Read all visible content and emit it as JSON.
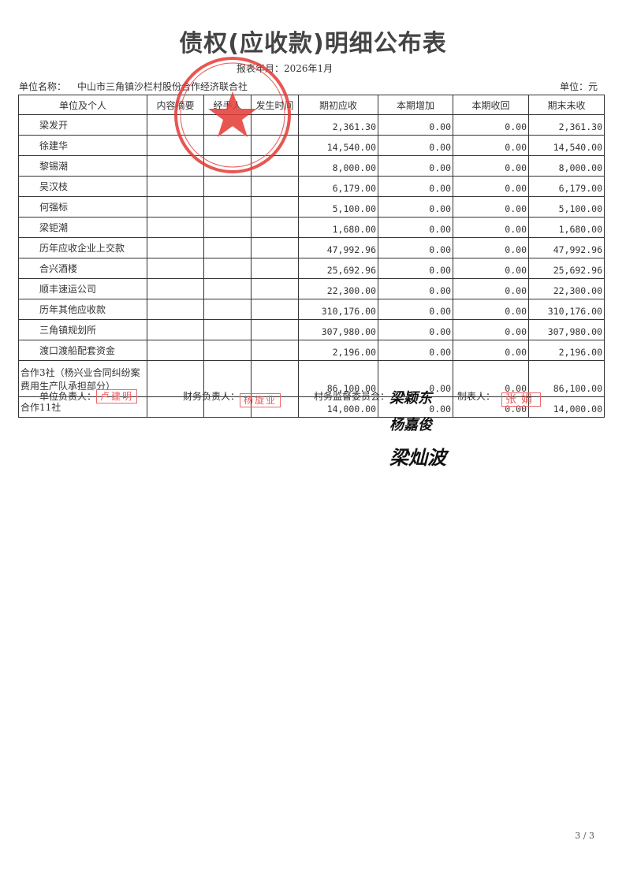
{
  "title": "债权(应收款)明细公布表",
  "period": "报表年月：2026年1月",
  "unit_name_label": "单位名称：",
  "unit_name": "中山市三角镇沙栏村股份合作经济联合社",
  "currency_unit": "单位：元",
  "columns": [
    "单位及个人",
    "内容摘要",
    "经手人",
    "发生时间",
    "期初应收",
    "本期增加",
    "本期收回",
    "期末未收"
  ],
  "rows": [
    {
      "name": "梁发开",
      "begin": "2,361.30",
      "add": "0.00",
      "recv": "0.00",
      "end": "2,361.30"
    },
    {
      "name": "徐建华",
      "begin": "14,540.00",
      "add": "0.00",
      "recv": "0.00",
      "end": "14,540.00"
    },
    {
      "name": "黎锡潮",
      "begin": "8,000.00",
      "add": "0.00",
      "recv": "0.00",
      "end": "8,000.00"
    },
    {
      "name": "吴汉枝",
      "begin": "6,179.00",
      "add": "0.00",
      "recv": "0.00",
      "end": "6,179.00"
    },
    {
      "name": "何强标",
      "begin": "5,100.00",
      "add": "0.00",
      "recv": "0.00",
      "end": "5,100.00"
    },
    {
      "name": "梁钜潮",
      "begin": "1,680.00",
      "add": "0.00",
      "recv": "0.00",
      "end": "1,680.00"
    },
    {
      "name": "历年应收企业上交款",
      "begin": "47,992.96",
      "add": "0.00",
      "recv": "0.00",
      "end": "47,992.96"
    },
    {
      "name": "合兴酒楼",
      "begin": "25,692.96",
      "add": "0.00",
      "recv": "0.00",
      "end": "25,692.96"
    },
    {
      "name": "顺丰速运公司",
      "begin": "22,300.00",
      "add": "0.00",
      "recv": "0.00",
      "end": "22,300.00"
    },
    {
      "name": "历年其他应收款",
      "begin": "310,176.00",
      "add": "0.00",
      "recv": "0.00",
      "end": "310,176.00"
    },
    {
      "name": "三角镇规划所",
      "begin": "307,980.00",
      "add": "0.00",
      "recv": "0.00",
      "end": "307,980.00"
    },
    {
      "name": "渡口渡船配套资金",
      "begin": "2,196.00",
      "add": "0.00",
      "recv": "0.00",
      "end": "2,196.00"
    },
    {
      "name": "合作3社（杨兴业合同纠纷案费用生产队承担部分）",
      "begin": "86,100.00",
      "add": "0.00",
      "recv": "0.00",
      "end": "86,100.00"
    },
    {
      "name": "合作11社",
      "begin": "14,000.00",
      "add": "0.00",
      "recv": "0.00",
      "end": "14,000.00"
    }
  ],
  "footer": {
    "unit_head": "单位负责人：",
    "unit_head_stamp": "卢建明",
    "finance_head": "财务负责人：",
    "finance_head_stamp": "杨旋业",
    "supervision": "村务监督委员会：",
    "supervision_signatures": [
      "梁颖东",
      "杨嘉俊",
      "梁灿波"
    ],
    "preparer": "制表人：",
    "preparer_stamp": "张娟"
  },
  "seal_text": "中山市三角镇沙栏村股份合作经济联合社",
  "page_number": "3 / 3",
  "colors": {
    "seal": "#e53935",
    "ink": "#333333"
  }
}
